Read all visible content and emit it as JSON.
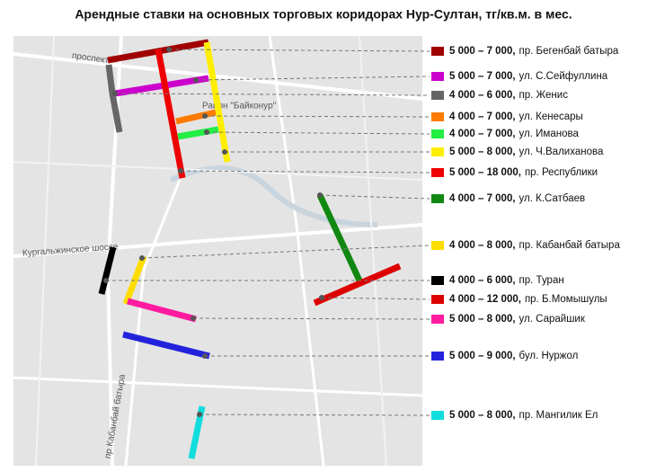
{
  "title": "Арендные ставки на основных торговых коридорах Нур-Султан, тг/кв.м. в мес.",
  "corridors": [
    {
      "range": "5 000 – 7 000,",
      "street": "пр. Бегенбай батыра",
      "color": "#a00000"
    },
    {
      "range": "5 000 – 7 000,",
      "street": "ул. С.Сейфуллина",
      "color": "#cc00cc"
    },
    {
      "range": "4 000 – 6 000,",
      "street": "пр. Женис",
      "color": "#666666"
    },
    {
      "range": "4 000 – 7 000,",
      "street": "ул. Кенесары",
      "color": "#ff7a00"
    },
    {
      "range": "4 000 – 7 000,",
      "street": "ул. Иманова",
      "color": "#22ee44"
    },
    {
      "range": "5 000 – 8 000,",
      "street": "ул. Ч.Валиханова",
      "color": "#ffee00"
    },
    {
      "range": "5 000 – 18 000,",
      "street": "пр. Республики",
      "color": "#ee0000"
    },
    {
      "range": "4 000 – 7 000,",
      "street": "ул. К.Сатбаев",
      "color": "#118811"
    },
    {
      "range": "4 000 – 8 000,",
      "street": "пр. Кабанбай батыра",
      "color": "#ffdd00"
    },
    {
      "range": "4 000 – 6 000,",
      "street": "пр. Туран",
      "color": "#000000"
    },
    {
      "range": "4 000 – 12 000,",
      "street": "пр. Б.Момышулы",
      "color": "#dd0000"
    },
    {
      "range": "5 000 – 8 000,",
      "street": "ул. Сарайшик",
      "color": "#ff1aa0"
    },
    {
      "range": "5 000 – 9 000,",
      "street": "бул. Нуржол",
      "color": "#2222dd"
    },
    {
      "range": "5 000 – 8 000,",
      "street": "пр. Мангилик Ел",
      "color": "#11dddd"
    }
  ],
  "map_labels": [
    "проспект",
    "Район \"Байконур\"",
    "Кургальжинское шоссе",
    "пр.Кабанбай батыра"
  ]
}
